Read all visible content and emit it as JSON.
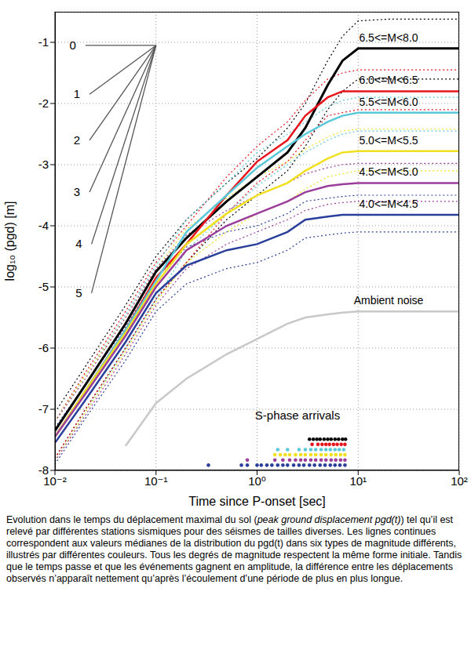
{
  "chart_data": {
    "type": "line",
    "x_label": "Time since P-onset [sec]",
    "y_label": "log₁₀ (pgd) [m]",
    "log": "x",
    "grid": true,
    "xlim": [
      0.01,
      100
    ],
    "xticks": [
      {
        "value": 0.01,
        "label": "10⁻²"
      },
      {
        "value": 0.1,
        "label": "10⁻¹"
      },
      {
        "value": 1,
        "label": "10⁰"
      },
      {
        "value": 10,
        "label": "10¹"
      },
      {
        "value": 100,
        "label": "10²"
      }
    ],
    "ylim": [
      -8,
      -0.5
    ],
    "yticks": [
      -8,
      -7,
      -6,
      -5,
      -4,
      -3,
      -2,
      -1
    ],
    "x": [
      0.01,
      0.02,
      0.05,
      0.1,
      0.2,
      0.5,
      1,
      2,
      3,
      5,
      7,
      10,
      20,
      50,
      100
    ],
    "series": [
      {
        "name": "6.5<=M<8.0",
        "color": "#000000",
        "values": [
          -7.35,
          -6.6,
          -5.6,
          -4.75,
          -4.2,
          -3.6,
          -3.2,
          -2.8,
          -2.4,
          -1.7,
          -1.3,
          -1.1,
          -1.1,
          -1.1,
          -1.1
        ],
        "upper": [
          -7.05,
          -6.3,
          -5.3,
          -4.5,
          -3.9,
          -3.3,
          -2.9,
          -2.4,
          -2.0,
          -1.3,
          -0.9,
          -0.65,
          -0.62,
          -0.62,
          -0.62
        ],
        "lower": [
          -7.8,
          -7.0,
          -6.0,
          -5.2,
          -4.6,
          -3.9,
          -3.5,
          -3.1,
          -2.7,
          -2.1,
          -1.8,
          -1.6,
          -1.6,
          -1.6,
          -1.6
        ],
        "s_arrivals": [
          3.3,
          3.6,
          3.9,
          4.2,
          4.6,
          5.0,
          5.4,
          5.9,
          6.4,
          7.0,
          7.5
        ]
      },
      {
        "name": "6.0<=M<6.5",
        "color": "#e8141c",
        "values": [
          -7.45,
          -6.7,
          -5.7,
          -4.85,
          -4.3,
          -3.5,
          -2.95,
          -2.6,
          -2.2,
          -1.9,
          -1.8,
          -1.8,
          -1.8,
          -1.8,
          -1.8
        ],
        "upper": [
          -7.2,
          -6.4,
          -5.4,
          -4.6,
          -4.0,
          -3.2,
          -2.7,
          -2.3,
          -1.95,
          -1.6,
          -1.5,
          -1.45,
          -1.45,
          -1.45,
          -1.45
        ],
        "lower": [
          -7.8,
          -7.0,
          -6.0,
          -5.2,
          -4.6,
          -3.8,
          -3.3,
          -2.95,
          -2.6,
          -2.2,
          -2.15,
          -2.1,
          -2.1,
          -2.1,
          -2.1
        ],
        "s_arrivals": [
          3.5,
          4.0,
          4.4,
          4.8,
          5.2,
          5.7,
          6.2,
          6.8,
          7.4
        ]
      },
      {
        "name": "5.5<=M<6.0",
        "color": "#5bc8d8",
        "values": [
          -7.45,
          -6.7,
          -5.7,
          -4.9,
          -4.1,
          -3.5,
          -3.05,
          -2.7,
          -2.5,
          -2.3,
          -2.2,
          -2.15,
          -2.15,
          -2.15,
          -2.15
        ],
        "upper": [
          -7.2,
          -6.45,
          -5.45,
          -4.65,
          -3.9,
          -3.3,
          -2.8,
          -2.5,
          -2.3,
          -2.05,
          -1.95,
          -1.9,
          -1.9,
          -1.9,
          -1.9
        ],
        "lower": [
          -7.85,
          -7.05,
          -6.0,
          -5.2,
          -4.4,
          -3.8,
          -3.35,
          -3.0,
          -2.8,
          -2.6,
          -2.5,
          -2.45,
          -2.45,
          -2.45,
          -2.45
        ],
        "s_arrivals": [
          1.6,
          2.0,
          2.6,
          3.0,
          3.4,
          3.8,
          4.3,
          4.8,
          5.3,
          5.9,
          6.5,
          7.2
        ]
      },
      {
        "name": "5.0<=M<5.5",
        "color": "#f0e020",
        "values": [
          -7.45,
          -6.7,
          -5.75,
          -4.95,
          -4.3,
          -3.8,
          -3.5,
          -3.3,
          -3.1,
          -2.9,
          -2.8,
          -2.78,
          -2.78,
          -2.78,
          -2.78
        ],
        "upper": [
          -7.2,
          -6.45,
          -5.5,
          -4.7,
          -4.05,
          -3.55,
          -3.2,
          -2.95,
          -2.75,
          -2.55,
          -2.45,
          -2.42,
          -2.42,
          -2.42,
          -2.42
        ],
        "lower": [
          -7.85,
          -7.05,
          -6.05,
          -5.25,
          -4.6,
          -4.1,
          -3.8,
          -3.6,
          -3.4,
          -3.2,
          -3.15,
          -3.1,
          -3.1,
          -3.1,
          -3.1
        ],
        "s_arrivals": [
          1.5,
          1.7,
          1.9,
          2.1,
          2.4,
          2.7,
          3.0,
          3.4,
          3.8,
          4.3,
          4.8,
          5.4,
          6.0,
          6.7,
          7.4
        ]
      },
      {
        "name": "4.5<=M<5.0",
        "color": "#9b3d9a",
        "values": [
          -7.45,
          -6.75,
          -5.8,
          -5.0,
          -4.4,
          -4.0,
          -3.8,
          -3.6,
          -3.45,
          -3.35,
          -3.32,
          -3.3,
          -3.3,
          -3.3,
          -3.3
        ],
        "upper": [
          -7.2,
          -6.5,
          -5.5,
          -4.7,
          -4.15,
          -3.75,
          -3.5,
          -3.3,
          -3.15,
          -3.05,
          -3.0,
          -2.98,
          -2.98,
          -2.98,
          -2.98
        ],
        "lower": [
          -7.85,
          -7.1,
          -6.1,
          -5.3,
          -4.7,
          -4.3,
          -4.1,
          -3.9,
          -3.75,
          -3.65,
          -3.62,
          -3.6,
          -3.6,
          -3.6,
          -3.6
        ],
        "s_arrivals": [
          0.8,
          1.5,
          1.8,
          2.1,
          2.4,
          2.7,
          3.0,
          3.4,
          3.8,
          4.3,
          4.8,
          5.4,
          6.0,
          6.7,
          7.4
        ]
      },
      {
        "name": "4.0<=M<4.5",
        "color": "#2a3f9a",
        "values": [
          -7.55,
          -6.85,
          -5.9,
          -5.1,
          -4.65,
          -4.4,
          -4.3,
          -4.1,
          -3.9,
          -3.85,
          -3.82,
          -3.82,
          -3.82,
          -3.82,
          -3.82
        ],
        "upper": [
          -7.3,
          -6.6,
          -5.65,
          -4.85,
          -4.35,
          -4.1,
          -4.0,
          -3.8,
          -3.6,
          -3.55,
          -3.52,
          -3.5,
          -3.5,
          -3.5,
          -3.5
        ],
        "lower": [
          -7.9,
          -7.15,
          -6.2,
          -5.4,
          -4.95,
          -4.7,
          -4.6,
          -4.4,
          -4.2,
          -4.15,
          -4.12,
          -4.1,
          -4.1,
          -4.1,
          -4.1
        ],
        "s_arrivals": [
          0.33,
          0.7,
          0.8,
          1.0,
          1.1,
          1.25,
          1.4,
          1.6,
          1.8,
          2.0,
          2.3,
          2.6,
          2.9,
          3.3,
          3.7,
          4.2,
          4.7,
          5.3,
          5.9,
          6.6,
          7.4
        ]
      },
      {
        "name": "Ambient noise",
        "color": "#c8c8c8",
        "values": [
          null,
          null,
          -7.6,
          -6.9,
          -6.5,
          -6.1,
          -5.85,
          -5.6,
          -5.5,
          -5.45,
          -5.42,
          -5.4,
          -5.4,
          -5.4,
          -5.4
        ]
      }
    ],
    "s_arrivals_label": "S-phase arrivals",
    "guides": {
      "color": "#555555",
      "lines": [
        {
          "label": 0,
          "x": [
            0.02,
            0.1
          ],
          "y": [
            -1.05,
            -1.05
          ]
        },
        {
          "label": 1,
          "x": [
            0.022,
            0.1
          ],
          "y": [
            -1.85,
            -1.05
          ]
        },
        {
          "label": 2,
          "x": [
            0.022,
            0.1
          ],
          "y": [
            -2.6,
            -1.05
          ]
        },
        {
          "label": 3,
          "x": [
            0.022,
            0.1
          ],
          "y": [
            -3.45,
            -1.05
          ]
        },
        {
          "label": 4,
          "x": [
            0.023,
            0.1
          ],
          "y": [
            -4.3,
            -1.05
          ]
        },
        {
          "label": 5,
          "x": [
            0.023,
            0.1
          ],
          "y": [
            -5.1,
            -1.05
          ]
        }
      ]
    }
  },
  "caption": {
    "before": "Evolution dans le temps du déplacement maximal du sol (",
    "italic": "peak ground displacement pgd(t)",
    "after": ") tel qu’il est relevé par différentes stations sismiques pour des séismes de tailles diverses. Les lignes continues correspondent aux valeurs médianes de la distribution du pgd(t) dans six types de magnitude différents, illustrés par différentes couleurs. Tous les degrés de magnitude respectent la même forme initiale. Tandis que le temps passe et que les événements gagnent en amplitude, la différence entre les déplacements observés n’apparaît nettement qu’après l’écoulement d’une période de plus en plus longue."
  }
}
